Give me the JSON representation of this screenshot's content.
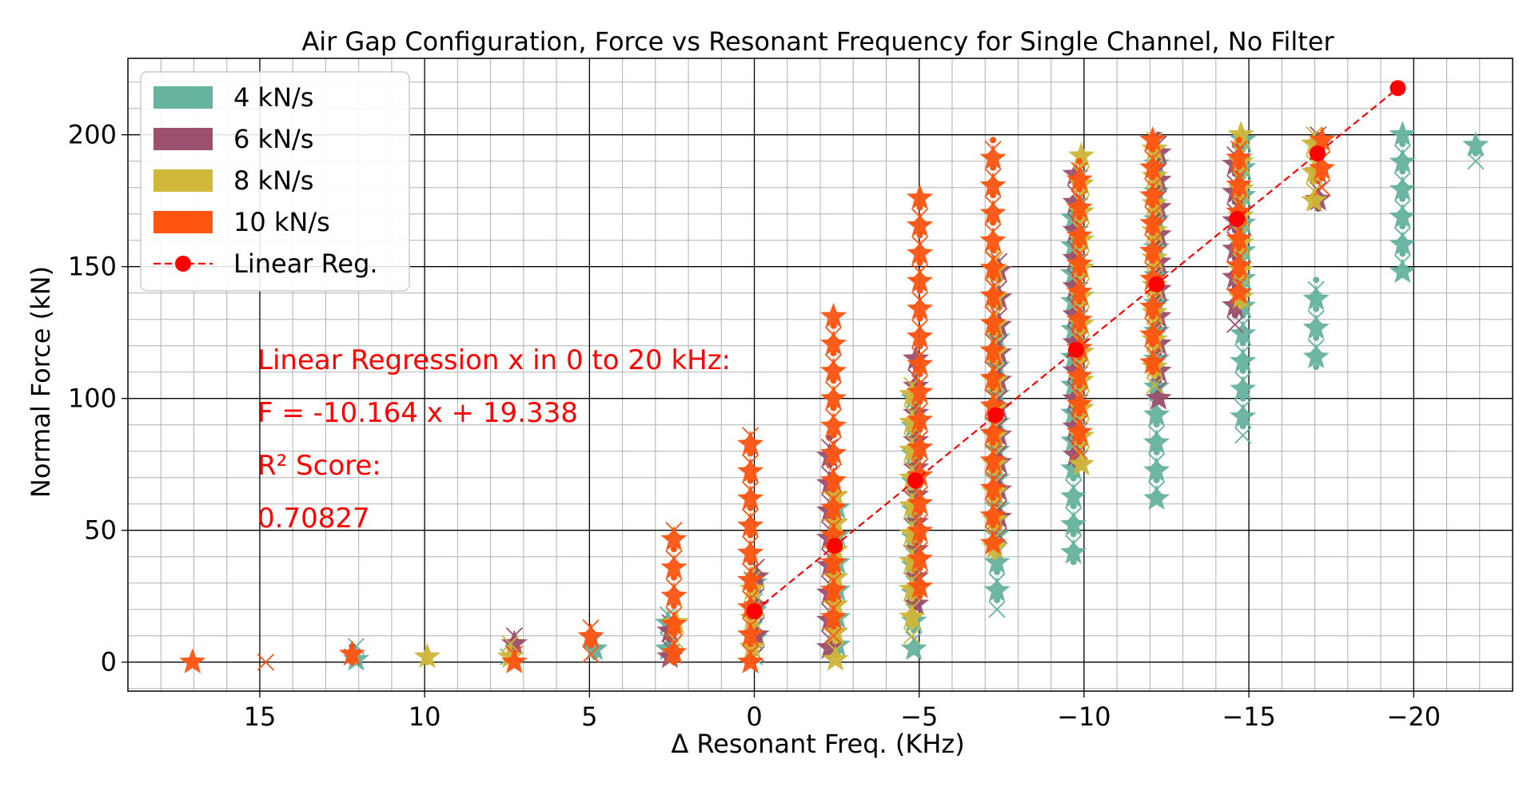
{
  "chart_data": {
    "type": "scatter",
    "title": "Air Gap Configuration, Force vs Resonant Frequency for Single Channel, No Filter",
    "xlabel": "Δ Resonant Freq. (KHz)",
    "ylabel": "Normal Force (kN)",
    "xlim": [
      19,
      -23
    ],
    "ylim": [
      -11,
      229
    ],
    "x_inverted": true,
    "grid": "major and minor",
    "legend_position": "top-left",
    "xticks": [
      15,
      10,
      5,
      0,
      -5,
      -10,
      -15,
      -20
    ],
    "xtick_labels": [
      "15",
      "10",
      "5",
      "0",
      "−5",
      "−10",
      "−15",
      "−20"
    ],
    "yticks": [
      0,
      50,
      100,
      150,
      200
    ],
    "ytick_labels": [
      "0",
      "50",
      "100",
      "150",
      "200"
    ],
    "legend": [
      {
        "label": "4 kN/s",
        "color": "#66b3a0",
        "kind": "patch"
      },
      {
        "label": "6 kN/s",
        "color": "#9c506e",
        "kind": "patch"
      },
      {
        "label": "8 kN/s",
        "color": "#cfb73a",
        "kind": "patch"
      },
      {
        "label": "10 kN/s",
        "color": "#ff5511",
        "kind": "patch"
      },
      {
        "label": "Linear Reg.",
        "color": "#ff0000",
        "kind": "line-marker"
      }
    ],
    "series": [
      {
        "name": "4 kN/s",
        "color": "#66b3a0",
        "columns": [
          {
            "x": 12.2,
            "lo": 1,
            "hi": 6
          },
          {
            "x": 7.4,
            "lo": 2,
            "hi": 6
          },
          {
            "x": 4.9,
            "lo": 2,
            "hi": 8
          },
          {
            "x": 2.5,
            "lo": 5,
            "hi": 18
          },
          {
            "x": 0,
            "lo": 2,
            "hi": 30
          },
          {
            "x": -2.4,
            "lo": 3,
            "hi": 62
          },
          {
            "x": -4.9,
            "lo": 5,
            "hi": 100
          },
          {
            "x": -7.3,
            "lo": 20,
            "hi": 130
          },
          {
            "x": -9.8,
            "lo": 38,
            "hi": 172
          },
          {
            "x": -12.2,
            "lo": 62,
            "hi": 196
          },
          {
            "x": -14.7,
            "lo": 86,
            "hi": 198
          },
          {
            "x": -17.1,
            "lo": 112,
            "hi": 145
          },
          {
            "x": -19.6,
            "lo": 148,
            "hi": 200
          },
          {
            "x": -22.0,
            "lo": 190,
            "hi": 196
          }
        ]
      },
      {
        "name": "6 kN/s",
        "color": "#9c506e",
        "columns": [
          {
            "x": 12.2,
            "lo": 2,
            "hi": 6
          },
          {
            "x": 7.4,
            "lo": 4,
            "hi": 10
          },
          {
            "x": 2.5,
            "lo": 2,
            "hi": 15
          },
          {
            "x": 0,
            "lo": 3,
            "hi": 36
          },
          {
            "x": -2.4,
            "lo": 2,
            "hi": 85
          },
          {
            "x": -4.9,
            "lo": 22,
            "hi": 115
          },
          {
            "x": -7.3,
            "lo": 48,
            "hi": 152
          },
          {
            "x": -9.8,
            "lo": 75,
            "hi": 185
          },
          {
            "x": -12.2,
            "lo": 100,
            "hi": 200
          },
          {
            "x": -14.7,
            "lo": 128,
            "hi": 196
          },
          {
            "x": -17.1,
            "lo": 172,
            "hi": 200
          }
        ]
      },
      {
        "name": "8 kN/s",
        "color": "#cfb73a",
        "columns": [
          {
            "x": 9.8,
            "lo": 0,
            "hi": 2
          },
          {
            "x": 7.4,
            "lo": 2,
            "hi": 7
          },
          {
            "x": 2.5,
            "lo": 8,
            "hi": 15
          },
          {
            "x": 0,
            "lo": 2,
            "hi": 35
          },
          {
            "x": -2.4,
            "lo": 1,
            "hi": 70
          },
          {
            "x": -4.9,
            "lo": 10,
            "hi": 105
          },
          {
            "x": -7.3,
            "lo": 40,
            "hi": 156
          },
          {
            "x": -9.8,
            "lo": 75,
            "hi": 192
          },
          {
            "x": -12.2,
            "lo": 105,
            "hi": 198
          },
          {
            "x": -14.7,
            "lo": 135,
            "hi": 200
          },
          {
            "x": -17.1,
            "lo": 175,
            "hi": 200
          }
        ]
      },
      {
        "name": "10 kN/s",
        "color": "#ff5511",
        "columns": [
          {
            "x": 17.1,
            "lo": 0,
            "hi": 1
          },
          {
            "x": 14.7,
            "lo": 0,
            "hi": 1
          },
          {
            "x": 12.2,
            "lo": 0,
            "hi": 3
          },
          {
            "x": 7.4,
            "lo": 0,
            "hi": 3
          },
          {
            "x": 4.9,
            "lo": 3,
            "hi": 13
          },
          {
            "x": 2.5,
            "lo": 0,
            "hi": 50
          },
          {
            "x": 0,
            "lo": 0,
            "hi": 86
          },
          {
            "x": -2.4,
            "lo": 10,
            "hi": 131
          },
          {
            "x": -4.9,
            "lo": 25,
            "hi": 176
          },
          {
            "x": -7.3,
            "lo": 45,
            "hi": 198
          },
          {
            "x": -9.8,
            "lo": 80,
            "hi": 190
          },
          {
            "x": -12.2,
            "lo": 110,
            "hi": 198
          },
          {
            "x": -14.7,
            "lo": 140,
            "hi": 198
          },
          {
            "x": -17.1,
            "lo": 180,
            "hi": 198
          }
        ]
      }
    ],
    "regression": {
      "name": "Linear Reg.",
      "color": "#ff0000",
      "x": [
        0,
        -2.44,
        -4.88,
        -7.32,
        -9.76,
        -12.2,
        -14.64,
        -17.08,
        -19.52
      ],
      "y": [
        19.3,
        44.1,
        68.9,
        93.7,
        118.5,
        143.3,
        168.1,
        192.9,
        217.7
      ]
    },
    "annotations": [
      "Linear Regression x in 0 to 20 kHz:",
      "F = -10.164 x  + 19.338",
      "R² Score:",
      "0.70827"
    ]
  }
}
